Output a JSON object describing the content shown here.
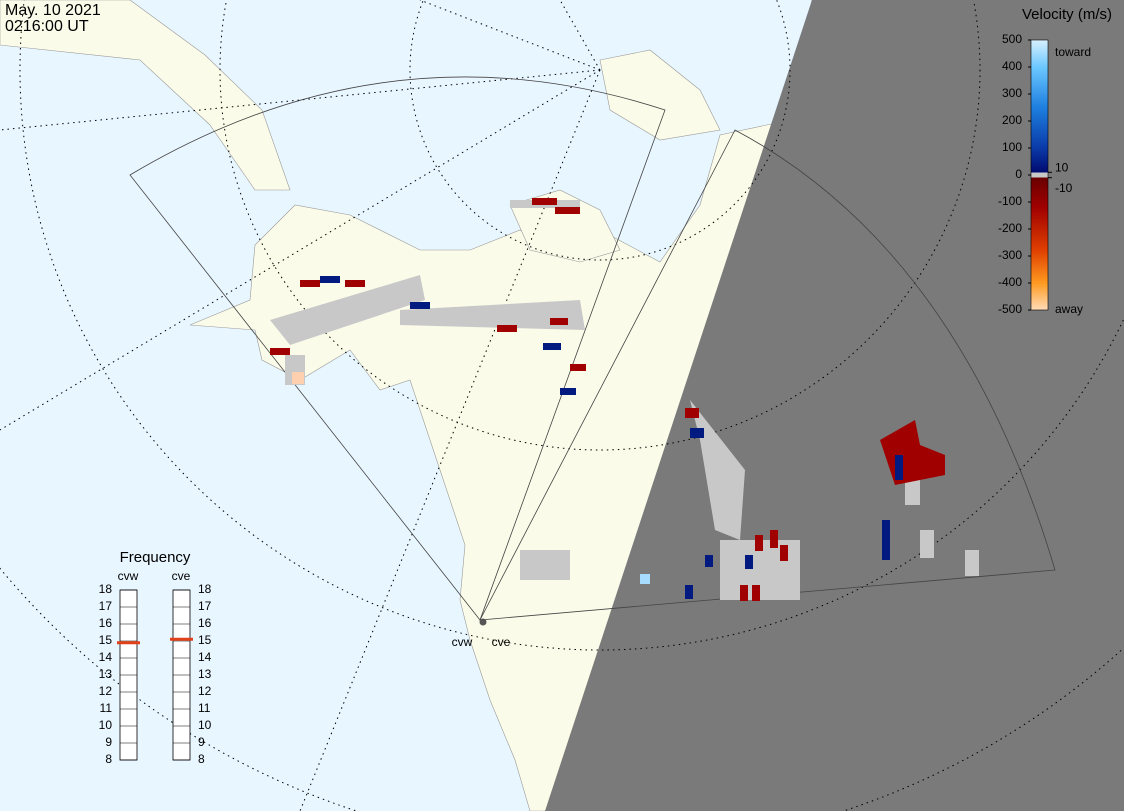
{
  "header": {
    "date": "May. 10 2021",
    "time": "0216:00 UT"
  },
  "velocity_scale": {
    "title": "Velocity (m/s)",
    "ticks": [
      500,
      400,
      300,
      200,
      100,
      0,
      -100,
      -200,
      -300,
      -400,
      -500
    ],
    "inner_ticks": [
      10,
      -10
    ],
    "toward_label": "toward",
    "away_label": "away"
  },
  "frequency": {
    "title": "Frequency",
    "ticks": [
      8,
      9,
      10,
      11,
      12,
      13,
      14,
      15,
      16,
      17,
      18
    ],
    "radars": [
      {
        "name": "cvw",
        "value": 14.9
      },
      {
        "name": "cve",
        "value": 15.1
      }
    ]
  },
  "stations": [
    {
      "label": "cvw"
    },
    {
      "label": "cve"
    }
  ]
}
